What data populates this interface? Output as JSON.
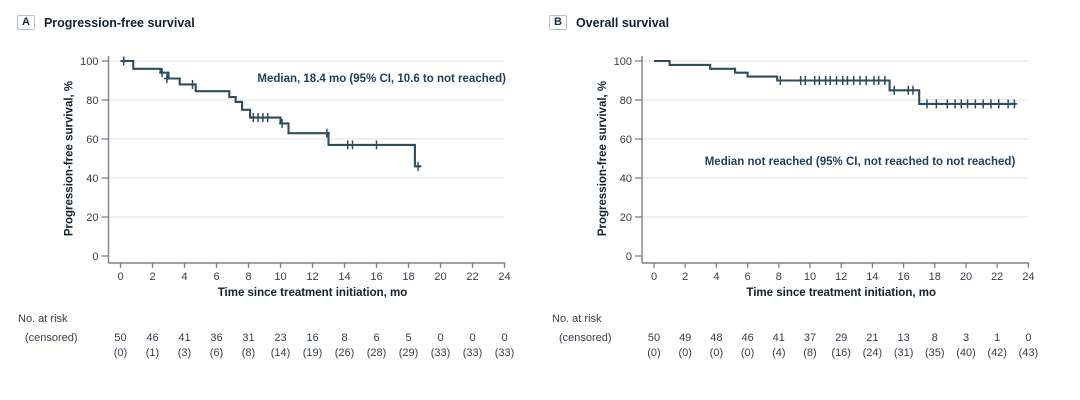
{
  "colors": {
    "curve": "#2e4d5c",
    "annotation": "#1c3e5e",
    "grid": "#e8e8e8",
    "axis": "#7b848c",
    "tick_text": "#343e49",
    "title_text": "#15202b"
  },
  "chart_data": [
    {
      "type": "line",
      "subtype": "kaplan-meier-step",
      "panel_label": "A",
      "title": "Progression-free survival",
      "ylabel": "Progression-free survival, %",
      "xlabel": "Time since treatment initiation, mo",
      "annotation": "Median, 18.4 mo (95% CI, 10.6 to not reached)",
      "xlim": [
        0,
        24
      ],
      "ylim": [
        0,
        100
      ],
      "x_ticks": [
        0,
        2,
        4,
        6,
        8,
        10,
        12,
        14,
        16,
        18,
        20,
        22,
        24
      ],
      "y_ticks": [
        0,
        20,
        40,
        60,
        80,
        100
      ],
      "grid": true,
      "steps": [
        [
          0,
          100
        ],
        [
          0.8,
          96
        ],
        [
          2.5,
          94
        ],
        [
          3.0,
          91
        ],
        [
          3.7,
          88
        ],
        [
          4.7,
          84.5
        ],
        [
          6.8,
          81.5
        ],
        [
          7.2,
          79
        ],
        [
          7.6,
          75
        ],
        [
          8.1,
          71
        ],
        [
          10.0,
          68
        ],
        [
          10.5,
          63
        ],
        [
          13.0,
          57
        ],
        [
          18.4,
          46
        ]
      ],
      "end_time": 18.8,
      "censors": [
        [
          0.2,
          100
        ],
        [
          2.6,
          94
        ],
        [
          2.9,
          91
        ],
        [
          4.5,
          88
        ],
        [
          8.3,
          71
        ],
        [
          8.6,
          71
        ],
        [
          8.9,
          71
        ],
        [
          9.2,
          71
        ],
        [
          10.1,
          68
        ],
        [
          12.9,
          63
        ],
        [
          14.2,
          57
        ],
        [
          14.5,
          57
        ],
        [
          16.0,
          57
        ],
        [
          18.6,
          46
        ]
      ],
      "at_risk": {
        "row_label_1": "No. at risk",
        "row_label_2": "(censored)",
        "times": [
          0,
          2,
          4,
          6,
          8,
          10,
          12,
          14,
          16,
          18,
          20,
          22,
          24
        ],
        "n": [
          "50",
          "46",
          "41",
          "36",
          "31",
          "23",
          "16",
          "8",
          "6",
          "5",
          "0",
          "0",
          "0"
        ],
        "censored": [
          "(0)",
          "(1)",
          "(3)",
          "(6)",
          "(8)",
          "(14)",
          "(19)",
          "(26)",
          "(28)",
          "(29)",
          "(33)",
          "(33)",
          "(33)"
        ]
      }
    },
    {
      "type": "line",
      "subtype": "kaplan-meier-step",
      "panel_label": "B",
      "title": "Overall survival",
      "ylabel": "Progression-free survival, %",
      "xlabel": "Time since treatment initiation, mo",
      "annotation": "Median not reached (95% CI, not reached to not reached)",
      "xlim": [
        0,
        24
      ],
      "ylim": [
        0,
        100
      ],
      "x_ticks": [
        0,
        2,
        4,
        6,
        8,
        10,
        12,
        14,
        16,
        18,
        20,
        22,
        24
      ],
      "y_ticks": [
        0,
        20,
        40,
        60,
        80,
        100
      ],
      "grid": true,
      "steps": [
        [
          0,
          100
        ],
        [
          1.0,
          98
        ],
        [
          3.6,
          96
        ],
        [
          5.2,
          94
        ],
        [
          6.0,
          92
        ],
        [
          7.9,
          90
        ],
        [
          15.1,
          85
        ],
        [
          17.0,
          78
        ]
      ],
      "end_time": 23.2,
      "censors": [
        [
          8.1,
          90
        ],
        [
          9.4,
          90
        ],
        [
          9.7,
          90
        ],
        [
          10.3,
          90
        ],
        [
          10.6,
          90
        ],
        [
          11.0,
          90
        ],
        [
          11.3,
          90
        ],
        [
          11.7,
          90
        ],
        [
          12.1,
          90
        ],
        [
          12.4,
          90
        ],
        [
          12.8,
          90
        ],
        [
          13.2,
          90
        ],
        [
          13.6,
          90
        ],
        [
          14.1,
          90
        ],
        [
          14.4,
          90
        ],
        [
          14.8,
          90
        ],
        [
          15.4,
          85
        ],
        [
          16.3,
          85
        ],
        [
          16.6,
          85
        ],
        [
          17.5,
          78
        ],
        [
          18.1,
          78
        ],
        [
          18.8,
          78
        ],
        [
          19.3,
          78
        ],
        [
          19.7,
          78
        ],
        [
          20.1,
          78
        ],
        [
          20.6,
          78
        ],
        [
          21.1,
          78
        ],
        [
          21.6,
          78
        ],
        [
          22.1,
          78
        ],
        [
          22.7,
          78
        ],
        [
          23.1,
          78
        ]
      ],
      "at_risk": {
        "row_label_1": "No. at risk",
        "row_label_2": "(censored)",
        "times": [
          0,
          2,
          4,
          6,
          8,
          10,
          12,
          14,
          16,
          18,
          20,
          22,
          24
        ],
        "n": [
          "50",
          "49",
          "48",
          "46",
          "41",
          "37",
          "29",
          "21",
          "13",
          "8",
          "3",
          "1",
          "0"
        ],
        "censored": [
          "(0)",
          "(0)",
          "(0)",
          "(0)",
          "(4)",
          "(8)",
          "(16)",
          "(24)",
          "(31)",
          "(35)",
          "(40)",
          "(42)",
          "(43)"
        ]
      }
    }
  ]
}
